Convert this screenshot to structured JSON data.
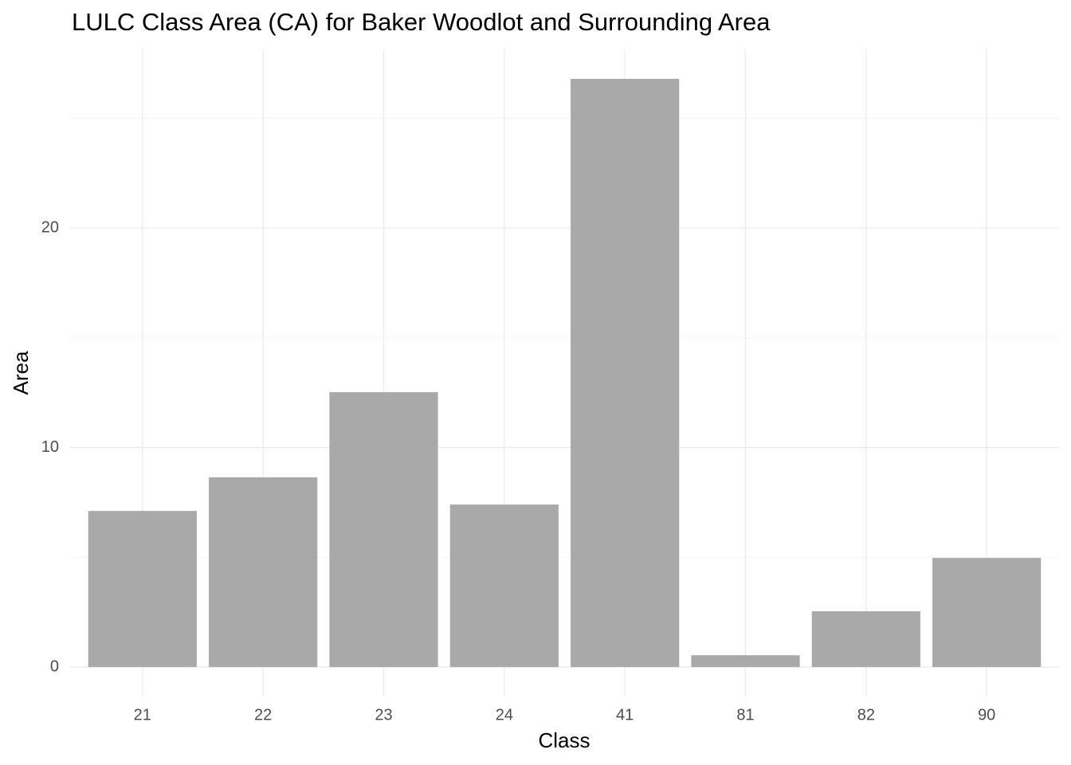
{
  "chart_data": {
    "type": "bar",
    "title": "LULC Class Area (CA) for Baker Woodlot and Surrounding Area",
    "x_label": "Class",
    "y_label": "Area",
    "categories": [
      "21",
      "22",
      "23",
      "24",
      "41",
      "81",
      "82",
      "90"
    ],
    "values": [
      7.11,
      8.64,
      12.52,
      7.4,
      26.79,
      0.54,
      2.54,
      4.97
    ],
    "color": "#a9a9a9",
    "ylim": [
      -1.34,
      28.13
    ],
    "yticks": [
      0,
      10,
      20
    ],
    "y_minor_ticks": [
      5,
      15,
      25
    ],
    "grid": true
  }
}
